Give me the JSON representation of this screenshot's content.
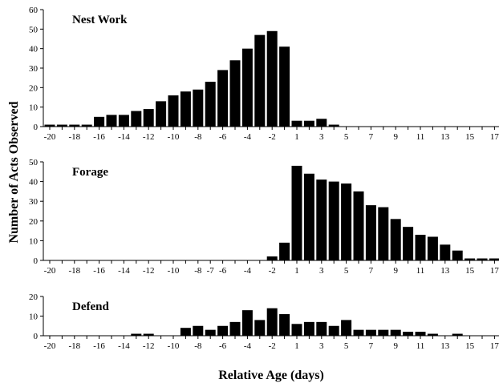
{
  "figure": {
    "ylabel": "Number of Acts Observed",
    "xlabel": "Relative Age (days)"
  },
  "chart_data": [
    {
      "type": "bar",
      "title": "Nest Work",
      "ylim": [
        0,
        60
      ],
      "yticks": [
        0,
        10,
        20,
        30,
        40,
        50,
        60
      ],
      "x": [
        -20,
        -19,
        -18,
        -17,
        -16,
        -15,
        -14,
        -13,
        -12,
        -11,
        -10,
        -9,
        -8,
        -7,
        -6,
        -5,
        -4,
        -3,
        -2,
        -1,
        1,
        2,
        3,
        4,
        5,
        6,
        7,
        8,
        9,
        10,
        11,
        12,
        13,
        14,
        15,
        16,
        17,
        18
      ],
      "xtick_labels": [
        "-20",
        "-18",
        "-16",
        "-14",
        "-12",
        "-10",
        "-8",
        "-6",
        "-4",
        "-2",
        "1",
        "3",
        "5",
        "7",
        "9",
        "11",
        "13",
        "15",
        "17"
      ],
      "values": [
        1,
        1,
        1,
        1,
        5,
        6,
        6,
        8,
        9,
        13,
        16,
        18,
        19,
        23,
        29,
        34,
        40,
        47,
        49,
        41,
        3,
        3,
        4,
        1,
        0,
        0,
        0,
        0,
        0,
        0,
        0,
        0,
        0,
        0,
        0,
        0,
        0,
        0
      ]
    },
    {
      "type": "bar",
      "title": "Forage",
      "ylim": [
        0,
        50
      ],
      "yticks": [
        0,
        10,
        20,
        30,
        40,
        50
      ],
      "x": [
        -20,
        -19,
        -18,
        -17,
        -16,
        -15,
        -14,
        -13,
        -12,
        -11,
        -10,
        -9,
        -8,
        -7,
        -6,
        -5,
        -4,
        -3,
        -2,
        -1,
        1,
        2,
        3,
        4,
        5,
        6,
        7,
        8,
        9,
        10,
        11,
        12,
        13,
        14,
        15,
        16,
        17,
        18
      ],
      "xtick_labels": [
        "-20",
        "-18",
        "-16",
        "-14",
        "-12",
        "-10",
        "-8",
        "-7",
        "-6",
        "-4",
        "-2",
        "1",
        "3",
        "5",
        "7",
        "9",
        "11",
        "13",
        "15",
        "17"
      ],
      "values": [
        0,
        0,
        0,
        0,
        0,
        0,
        0,
        0,
        0,
        0,
        0,
        0,
        0,
        0,
        0,
        0,
        0,
        0,
        2,
        9,
        48,
        44,
        41,
        40,
        39,
        35,
        28,
        27,
        21,
        17,
        13,
        12,
        8,
        5,
        1,
        1,
        1,
        1
      ]
    },
    {
      "type": "bar",
      "title": "Defend",
      "ylim": [
        0,
        20
      ],
      "yticks": [
        0,
        10,
        20
      ],
      "x": [
        -20,
        -19,
        -18,
        -17,
        -16,
        -15,
        -14,
        -13,
        -12,
        -11,
        -10,
        -9,
        -8,
        -7,
        -6,
        -5,
        -4,
        -3,
        -2,
        -1,
        1,
        2,
        3,
        4,
        5,
        6,
        7,
        8,
        9,
        10,
        11,
        12,
        13,
        14,
        15,
        16,
        17,
        18
      ],
      "xtick_labels": [
        "-20",
        "-18",
        "-16",
        "-14",
        "-12",
        "-10",
        "-8",
        "-6",
        "-4",
        "-2",
        "1",
        "3",
        "5",
        "7",
        "9",
        "11",
        "13",
        "15",
        "17"
      ],
      "values": [
        0,
        0,
        0,
        0,
        0,
        0,
        0,
        1,
        1,
        0,
        0,
        4,
        5,
        3,
        5,
        7,
        13,
        8,
        14,
        11,
        6,
        7,
        7,
        5,
        8,
        3,
        3,
        3,
        3,
        2,
        2,
        1,
        0,
        1,
        0,
        0,
        0,
        0
      ]
    }
  ]
}
